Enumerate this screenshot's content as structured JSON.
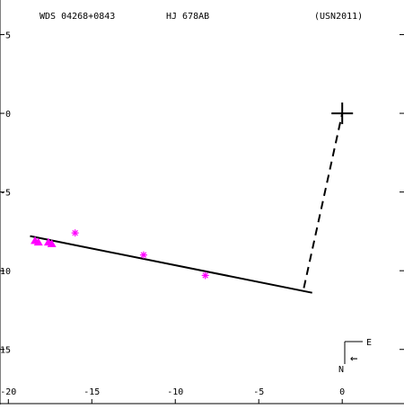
{
  "header": {
    "wds_id": "WDS 04268+0843",
    "discoverer": "HJ  678AB",
    "reference": "(USN2011)"
  },
  "compass": {
    "east_label": "E",
    "north_label": "N",
    "arrow": "←"
  },
  "colors": {
    "background": "#ffffff",
    "axis": "#000000",
    "orbit_line": "#000000",
    "observations": "#ff00ff"
  },
  "chart_data": {
    "type": "scatter",
    "title": "",
    "xlabel": "",
    "ylabel": "",
    "xlim": [
      -20.5,
      3.7
    ],
    "ylim": [
      -18.5,
      7.2
    ],
    "x_ticks": [
      -20,
      -15,
      -10,
      -5,
      0
    ],
    "y_ticks": [
      5,
      0,
      -5,
      -10,
      -15
    ],
    "x_tick_labels": [
      "-20",
      "-15",
      "-10",
      "-5",
      "0"
    ],
    "y_tick_labels": [
      "5",
      "0",
      "-5",
      "-10",
      "-15"
    ],
    "grid": false,
    "primary_star": {
      "x": 0,
      "y": 0,
      "marker": "cross"
    },
    "fit_line": {
      "x": [
        -18.7,
        -1.8
      ],
      "y": [
        -7.8,
        -11.4
      ]
    },
    "connector": {
      "x": [
        -2.3,
        0
      ],
      "y": [
        -11.1,
        0
      ],
      "style": "dashed"
    },
    "series": [
      {
        "marker": "asterisk",
        "points": [
          {
            "x": -16.0,
            "y": -7.6
          },
          {
            "x": -11.9,
            "y": -9.0
          },
          {
            "x": -8.2,
            "y": -10.3
          }
        ]
      },
      {
        "marker": "triangle",
        "points": [
          {
            "x": -18.4,
            "y": -8.1
          },
          {
            "x": -18.2,
            "y": -8.2
          },
          {
            "x": -17.6,
            "y": -8.2
          },
          {
            "x": -17.4,
            "y": -8.3
          }
        ]
      }
    ]
  }
}
